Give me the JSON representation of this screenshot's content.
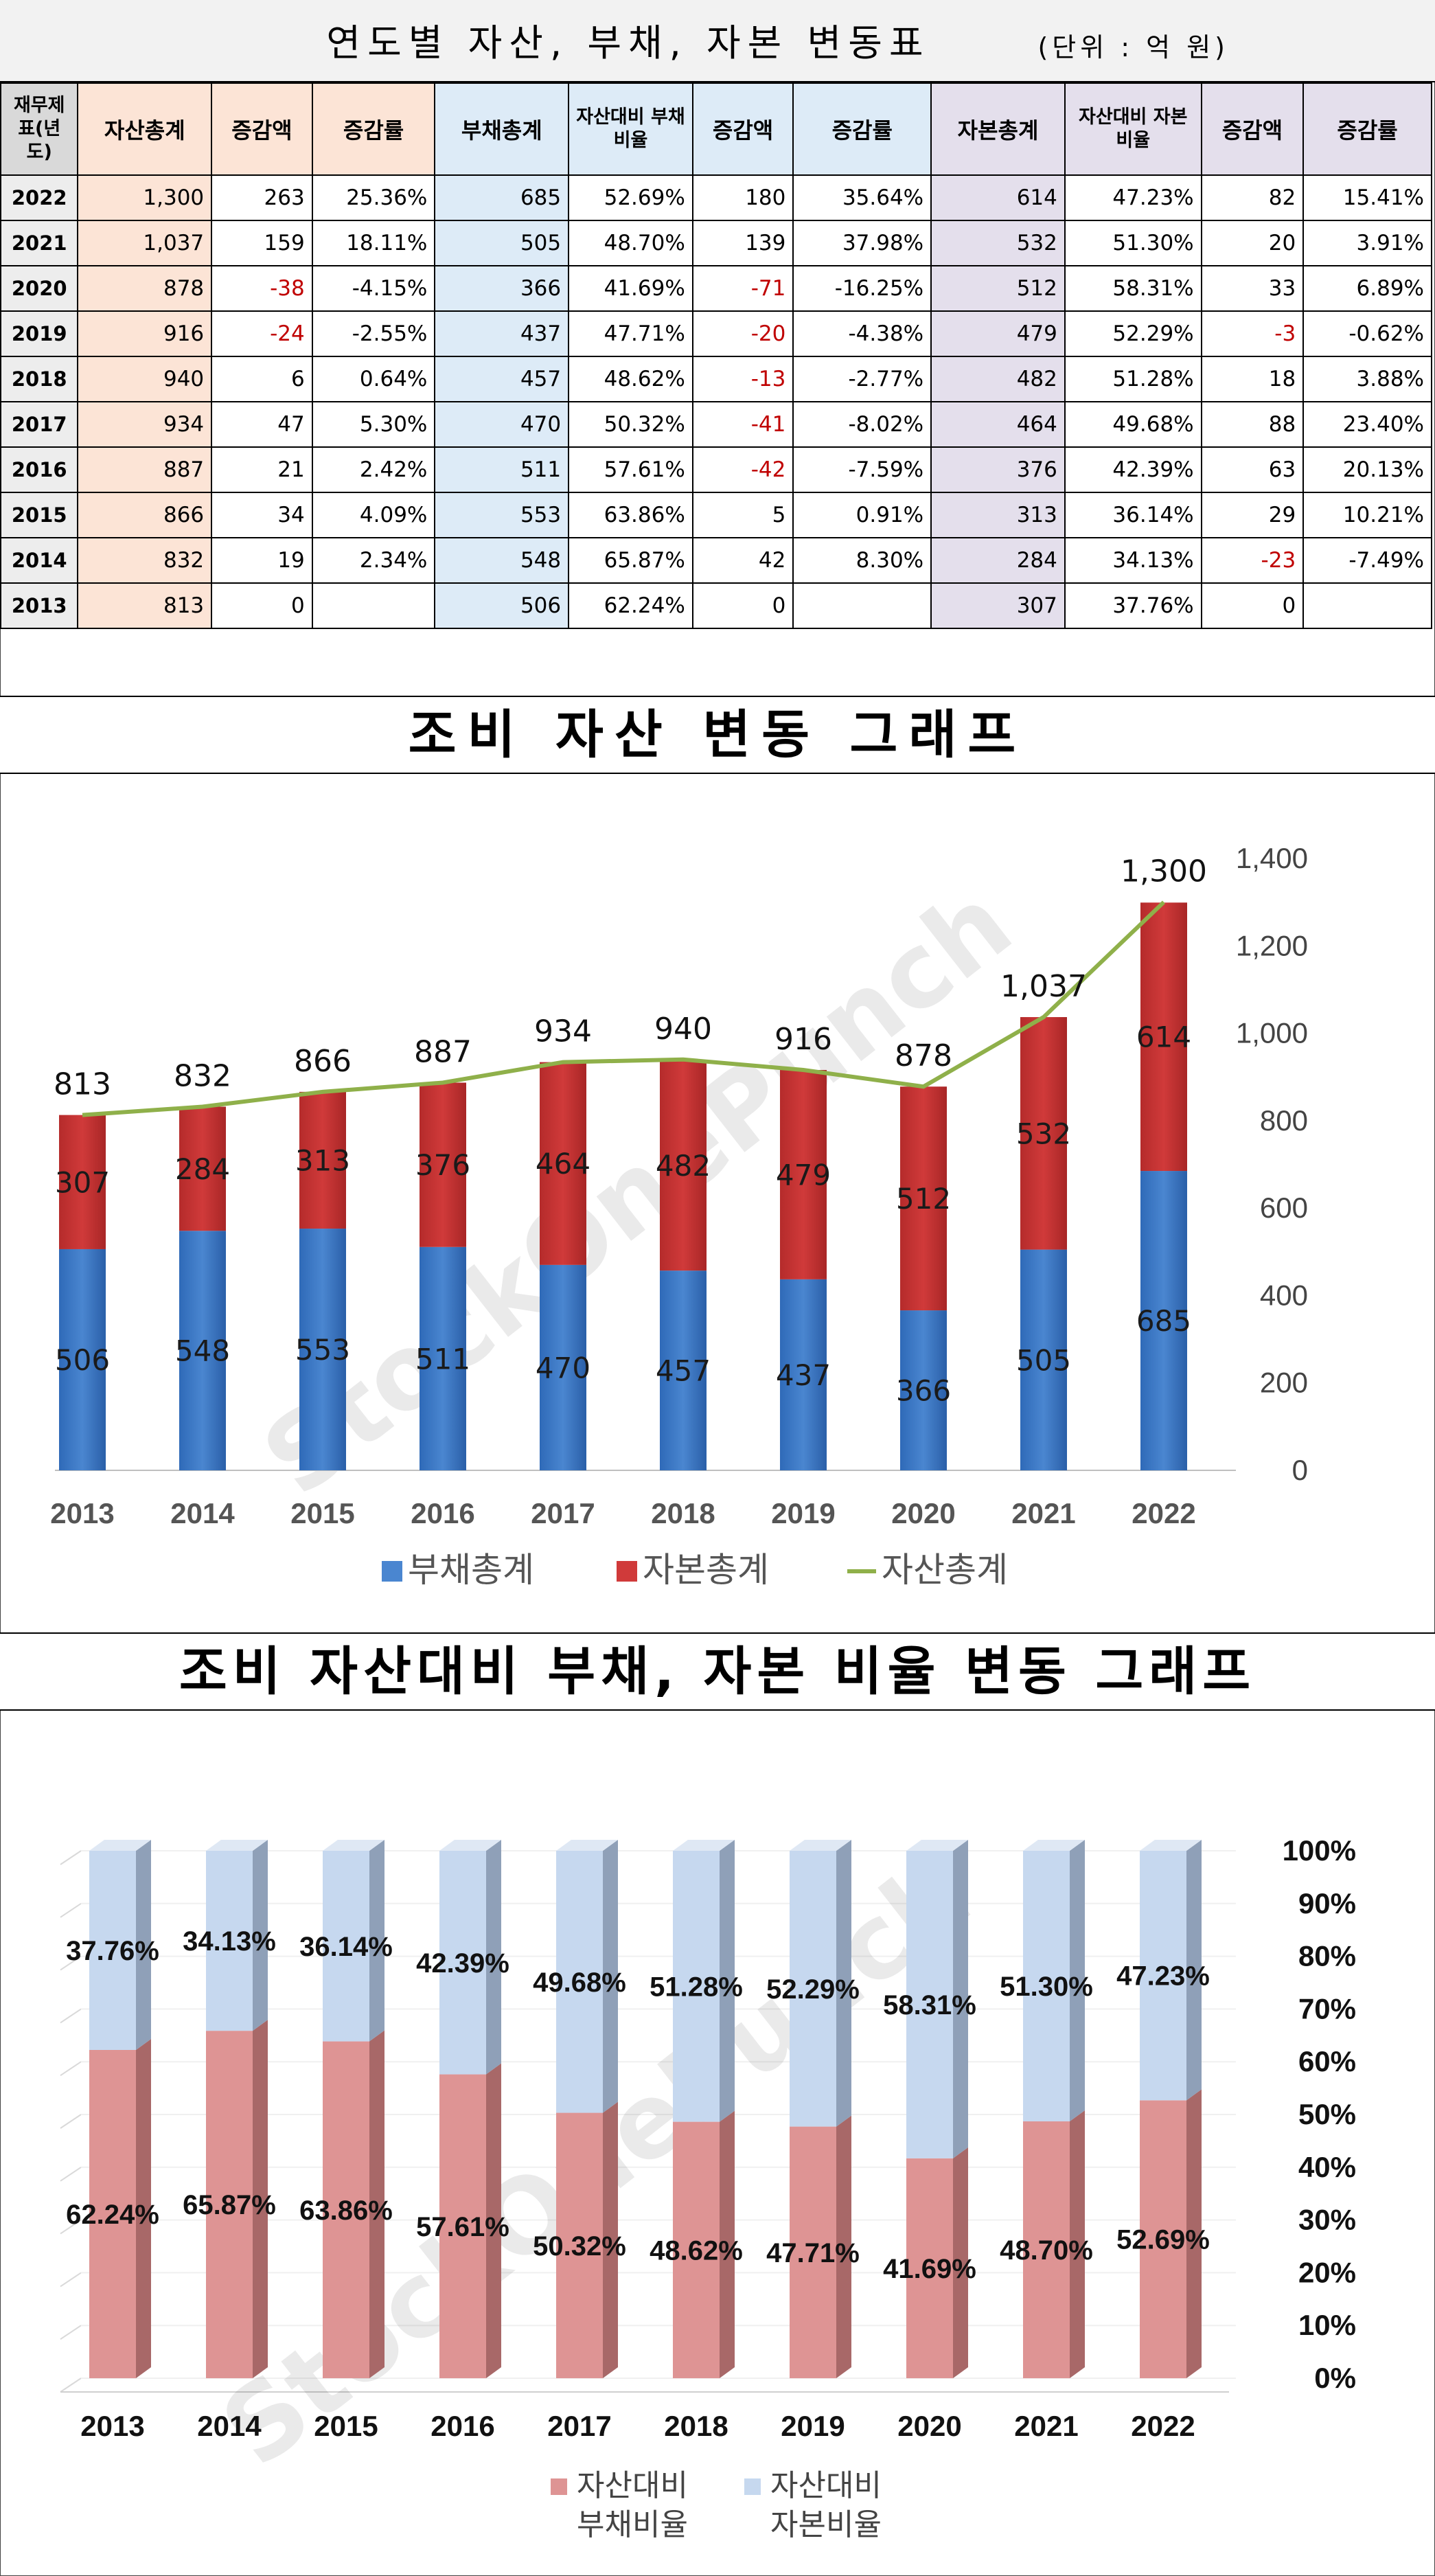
{
  "table": {
    "title": "연도별 자산, 부채, 자본 변동표",
    "unit": "(단위 : 억 원)",
    "headers": {
      "year": "재무제표(년도)",
      "asset_total": "자산총계",
      "asset_change": "증감액",
      "asset_rate": "증감률",
      "liab_total": "부채총계",
      "liab_ratio": "자산대비 부채비율",
      "liab_change": "증감액",
      "liab_rate": "증감률",
      "cap_total": "자본총계",
      "cap_ratio": "자산대비 자본비율",
      "cap_change": "증감액",
      "cap_rate": "증감률"
    },
    "rows": [
      {
        "year": "2022",
        "asset": "1,300",
        "asset_chg": "263",
        "asset_rate": "25.36%",
        "liab": "685",
        "liab_ratio": "52.69%",
        "liab_chg": "180",
        "liab_rate": "35.64%",
        "cap": "614",
        "cap_ratio": "47.23%",
        "cap_chg": "82",
        "cap_rate": "15.41%"
      },
      {
        "year": "2021",
        "asset": "1,037",
        "asset_chg": "159",
        "asset_rate": "18.11%",
        "liab": "505",
        "liab_ratio": "48.70%",
        "liab_chg": "139",
        "liab_rate": "37.98%",
        "cap": "532",
        "cap_ratio": "51.30%",
        "cap_chg": "20",
        "cap_rate": "3.91%"
      },
      {
        "year": "2020",
        "asset": "878",
        "asset_chg": "-38",
        "asset_rate": "-4.15%",
        "liab": "366",
        "liab_ratio": "41.69%",
        "liab_chg": "-71",
        "liab_rate": "-16.25%",
        "cap": "512",
        "cap_ratio": "58.31%",
        "cap_chg": "33",
        "cap_rate": "6.89%"
      },
      {
        "year": "2019",
        "asset": "916",
        "asset_chg": "-24",
        "asset_rate": "-2.55%",
        "liab": "437",
        "liab_ratio": "47.71%",
        "liab_chg": "-20",
        "liab_rate": "-4.38%",
        "cap": "479",
        "cap_ratio": "52.29%",
        "cap_chg": "-3",
        "cap_rate": "-0.62%"
      },
      {
        "year": "2018",
        "asset": "940",
        "asset_chg": "6",
        "asset_rate": "0.64%",
        "liab": "457",
        "liab_ratio": "48.62%",
        "liab_chg": "-13",
        "liab_rate": "-2.77%",
        "cap": "482",
        "cap_ratio": "51.28%",
        "cap_chg": "18",
        "cap_rate": "3.88%"
      },
      {
        "year": "2017",
        "asset": "934",
        "asset_chg": "47",
        "asset_rate": "5.30%",
        "liab": "470",
        "liab_ratio": "50.32%",
        "liab_chg": "-41",
        "liab_rate": "-8.02%",
        "cap": "464",
        "cap_ratio": "49.68%",
        "cap_chg": "88",
        "cap_rate": "23.40%"
      },
      {
        "year": "2016",
        "asset": "887",
        "asset_chg": "21",
        "asset_rate": "2.42%",
        "liab": "511",
        "liab_ratio": "57.61%",
        "liab_chg": "-42",
        "liab_rate": "-7.59%",
        "cap": "376",
        "cap_ratio": "42.39%",
        "cap_chg": "63",
        "cap_rate": "20.13%"
      },
      {
        "year": "2015",
        "asset": "866",
        "asset_chg": "34",
        "asset_rate": "4.09%",
        "liab": "553",
        "liab_ratio": "63.86%",
        "liab_chg": "5",
        "liab_rate": "0.91%",
        "cap": "313",
        "cap_ratio": "36.14%",
        "cap_chg": "29",
        "cap_rate": "10.21%"
      },
      {
        "year": "2014",
        "asset": "832",
        "asset_chg": "19",
        "asset_rate": "2.34%",
        "liab": "548",
        "liab_ratio": "65.87%",
        "liab_chg": "42",
        "liab_rate": "8.30%",
        "cap": "284",
        "cap_ratio": "34.13%",
        "cap_chg": "-23",
        "cap_rate": "-7.49%"
      },
      {
        "year": "2013",
        "asset": "813",
        "asset_chg": "0",
        "asset_rate": "",
        "liab": "506",
        "liab_ratio": "62.24%",
        "liab_chg": "0",
        "liab_rate": "",
        "cap": "307",
        "cap_ratio": "37.76%",
        "cap_chg": "0",
        "cap_rate": ""
      }
    ]
  },
  "watermark": "StockOnePunch",
  "colors": {
    "liab": "#4a86d0",
    "cap": "#d03a3a",
    "asset_line": "#8fb04a",
    "ratio_liab": "#de9494",
    "ratio_cap": "#c6d8ef",
    "neg_text": "#c00000"
  },
  "chart_data": [
    {
      "type": "bar",
      "stacked": true,
      "title": "조비 자산 변동 그래프",
      "categories": [
        "2013",
        "2014",
        "2015",
        "2016",
        "2017",
        "2018",
        "2019",
        "2020",
        "2021",
        "2022"
      ],
      "series": [
        {
          "name": "부채총계",
          "kind": "bar",
          "values": [
            506,
            548,
            553,
            511,
            470,
            457,
            437,
            366,
            505,
            685
          ]
        },
        {
          "name": "자본총계",
          "kind": "bar",
          "values": [
            307,
            284,
            313,
            376,
            464,
            482,
            479,
            512,
            532,
            614
          ]
        },
        {
          "name": "자산총계",
          "kind": "line",
          "values": [
            813,
            832,
            866,
            887,
            934,
            940,
            916,
            878,
            1037,
            1300
          ]
        }
      ],
      "ylim": [
        0,
        1400
      ],
      "yticks": [
        "0",
        "200",
        "400",
        "600",
        "800",
        "1,000",
        "1,200",
        "1,400"
      ],
      "axis_position": "right",
      "legend": "bottom",
      "grid": false
    },
    {
      "type": "bar",
      "stacked": true,
      "percent": true,
      "style": "3d",
      "title": "조비 자산대비 부채, 자본 비율 변동 그래프",
      "categories": [
        "2013",
        "2014",
        "2015",
        "2016",
        "2017",
        "2018",
        "2019",
        "2020",
        "2021",
        "2022"
      ],
      "series": [
        {
          "name": "자산대비 부채비율",
          "values": [
            62.24,
            65.87,
            63.86,
            57.61,
            50.32,
            48.62,
            47.71,
            41.69,
            48.7,
            52.69
          ]
        },
        {
          "name": "자산대비 자본비율",
          "values": [
            37.76,
            34.13,
            36.14,
            42.39,
            49.68,
            51.28,
            52.29,
            58.31,
            51.3,
            47.23
          ]
        }
      ],
      "ylim": [
        0,
        100
      ],
      "yticks": [
        "0%",
        "10%",
        "20%",
        "30%",
        "40%",
        "50%",
        "60%",
        "70%",
        "80%",
        "90%",
        "100%"
      ],
      "axis_position": "right",
      "legend": "bottom",
      "grid": true
    }
  ]
}
